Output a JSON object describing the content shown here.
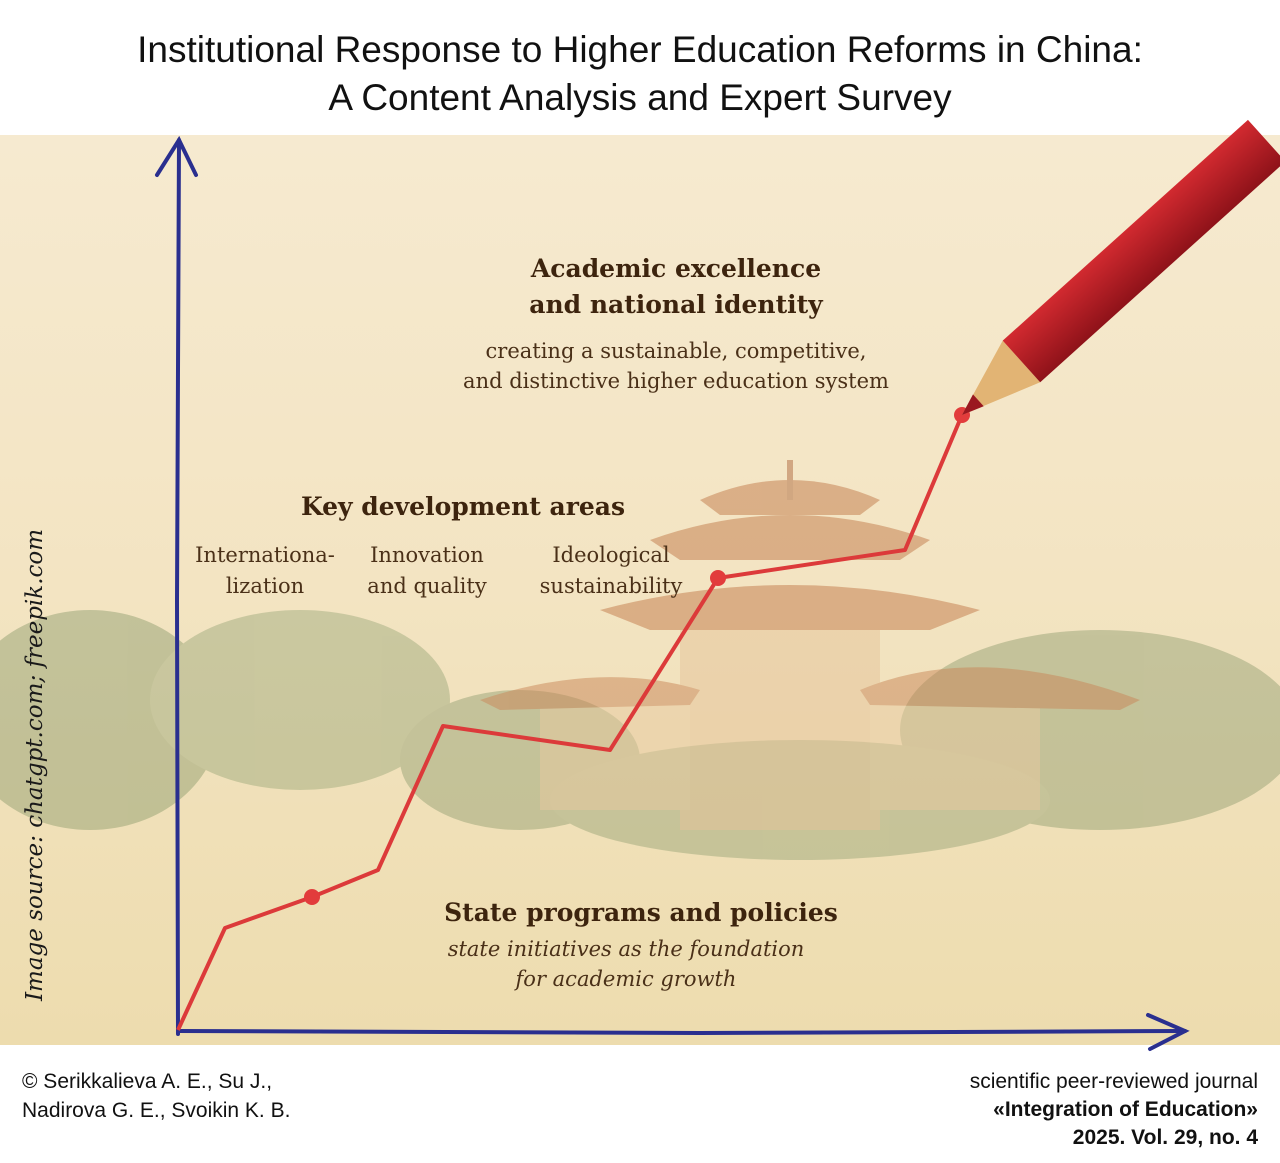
{
  "header": {
    "title": [
      "Institutional Response to Higher Education Reforms in China:",
      "A Content Analysis and Expert Survey"
    ]
  },
  "illustration": {
    "goal": {
      "heading": [
        "Academic excellence",
        "and national identity"
      ],
      "description": [
        "creating a sustainable, competitive,",
        "and distinctive higher education system"
      ]
    },
    "development": {
      "heading": "Key development areas",
      "areas": [
        [
          "Internationa-",
          "lization"
        ],
        [
          "Innovation",
          "and quality"
        ],
        [
          "Ideological",
          "sustainability"
        ]
      ]
    },
    "foundation": {
      "heading": "State programs and policies",
      "description": [
        "state initiatives as the foundation",
        "for academic growth"
      ]
    },
    "credit": "Image source: chatgpt.com; freepik.com"
  },
  "footer": {
    "authors": [
      "© Serikkalieva A. E., Su J.,",
      "Nadirova G. E., Svoikin K. B."
    ],
    "journal": [
      "scientific peer-reviewed journal",
      "«Integration of Education»",
      "2025. Vol. 29, no. 4"
    ]
  }
}
